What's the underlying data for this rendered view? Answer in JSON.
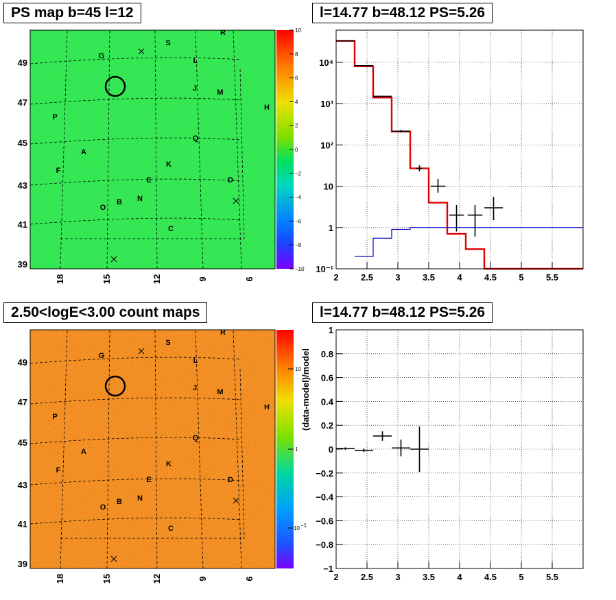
{
  "panels": {
    "top_left_title": "PS map b=45 l=12",
    "top_right_title": "l=14.77 b=48.12 PS=5.26",
    "bottom_left_title": "2.50<logE<3.00 count maps",
    "bottom_right_title": "l=14.77 b=48.12 PS=5.26"
  },
  "colors": {
    "ps_map_background": "#2ee84a",
    "count_map_background": "#f07a1e",
    "model_line": "#e00000",
    "background_line": "#0000cc",
    "data": "#000000"
  },
  "maps": {
    "x_tick_labels": [
      "18",
      "15",
      "12",
      "9",
      "6"
    ],
    "y_tick_labels": [
      "49",
      "47",
      "45",
      "43",
      "41",
      "39"
    ],
    "ps_colorbar_labels": [
      "10",
      "8",
      "6",
      "4",
      "2",
      "0",
      "−2",
      "−4",
      "−6",
      "−8",
      "−10"
    ],
    "count_colorbar_labels": [
      "10",
      "1"
    ],
    "count_colorbar_exp_label": "10",
    "count_colorbar_exp_sup": "−1",
    "source_labels": [
      "G",
      "S",
      "R",
      "L",
      "J",
      "M",
      "H",
      "P",
      "Q",
      "A",
      "F",
      "K",
      "E",
      "D",
      "O",
      "B",
      "N",
      "C"
    ],
    "marker_icon": "cross-marker-icon",
    "selected_source_icon": "circle-marker-icon"
  },
  "chart_data": [
    {
      "type": "line",
      "title": "l=14.77 b=48.12 PS=5.26",
      "xlabel": "",
      "ylabel": "",
      "xlim": [
        2,
        6
      ],
      "ylim": [
        0.1,
        60000
      ],
      "y_log": true,
      "grid": true,
      "x_tick_labels": [
        "2",
        "2.5",
        "3",
        "3.5",
        "4",
        "4.5",
        "5",
        "5.5"
      ],
      "y_tick_labels": [
        "10⁻¹",
        "1",
        "10",
        "10²",
        "10³",
        "10⁴"
      ],
      "series": [
        {
          "style": "step",
          "color": "#e00000",
          "bin_edges": [
            2.0,
            2.3,
            2.6,
            2.9,
            3.2,
            3.5,
            3.8,
            4.1,
            4.4,
            6.0
          ],
          "values": [
            33000,
            8000,
            1400,
            210,
            27,
            4,
            0.7,
            0.3,
            0.1
          ]
        },
        {
          "style": "step",
          "color": "#0000cc",
          "bin_edges": [
            2.3,
            2.6,
            2.9,
            3.2,
            3.5,
            6.0
          ],
          "values": [
            0.2,
            0.55,
            0.9,
            1.0,
            1.0
          ]
        },
        {
          "style": "errorbar",
          "color": "#000000",
          "points": [
            {
              "x": 2.15,
              "xerr": 0.15,
              "y": 33000,
              "ylo": 32500,
              "yhi": 33500
            },
            {
              "x": 2.45,
              "xerr": 0.15,
              "y": 8300,
              "ylo": 8100,
              "yhi": 8500
            },
            {
              "x": 2.75,
              "xerr": 0.15,
              "y": 1500,
              "ylo": 1450,
              "yhi": 1550
            },
            {
              "x": 3.05,
              "xerr": 0.15,
              "y": 215,
              "ylo": 200,
              "yhi": 230
            },
            {
              "x": 3.35,
              "xerr": 0.05,
              "y": 27,
              "ylo": 23,
              "yhi": 32
            },
            {
              "x": 3.65,
              "xerr": 0.12,
              "y": 10,
              "ylo": 7,
              "yhi": 15
            },
            {
              "x": 3.95,
              "xerr": 0.12,
              "y": 2,
              "ylo": 0.8,
              "yhi": 3.5
            },
            {
              "x": 4.25,
              "xerr": 0.12,
              "y": 2,
              "ylo": 0.6,
              "yhi": 3.5
            },
            {
              "x": 4.55,
              "xerr": 0.15,
              "y": 3,
              "ylo": 1.5,
              "yhi": 5.5
            }
          ]
        }
      ]
    },
    {
      "type": "scatter",
      "title": "l=14.77 b=48.12 PS=5.26",
      "xlabel": "",
      "ylabel": "(data-model)/model",
      "xlim": [
        2,
        6
      ],
      "ylim": [
        -1,
        1
      ],
      "grid": true,
      "x_tick_labels": [
        "2",
        "2.5",
        "3",
        "3.5",
        "4",
        "4.5",
        "5",
        "5.5"
      ],
      "y_tick_labels": [
        "1",
        "0.8",
        "0.6",
        "0.4",
        "0.2",
        "0",
        "−0.2",
        "−0.4",
        "−0.6",
        "−0.8",
        "−1"
      ],
      "series": [
        {
          "style": "errorbar",
          "color": "#000000",
          "points": [
            {
              "x": 2.15,
              "xerr": 0.15,
              "y": 0.005,
              "ylo": -0.005,
              "yhi": 0.015
            },
            {
              "x": 2.45,
              "xerr": 0.15,
              "y": -0.01,
              "ylo": -0.025,
              "yhi": 0.005
            },
            {
              "x": 2.75,
              "xerr": 0.15,
              "y": 0.11,
              "ylo": 0.07,
              "yhi": 0.15
            },
            {
              "x": 3.05,
              "xerr": 0.15,
              "y": 0.01,
              "ylo": -0.06,
              "yhi": 0.08
            },
            {
              "x": 3.35,
              "xerr": 0.15,
              "y": 0.0,
              "ylo": -0.19,
              "yhi": 0.19
            }
          ]
        }
      ]
    }
  ]
}
